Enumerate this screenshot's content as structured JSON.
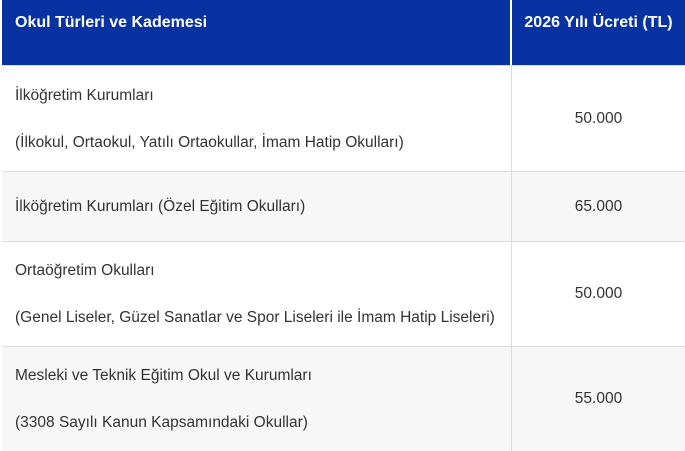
{
  "table": {
    "header": {
      "col1": "Okul Türleri ve Kademesi",
      "col2": "2026 Yılı Ücreti (TL)"
    },
    "rows": [
      {
        "title": "İlköğretim Kurumları",
        "subtitle": "(İlkokul, Ortaokul, Yatılı Ortaokullar, İmam Hatip Okulları)",
        "price": "50.000"
      },
      {
        "title": "İlköğretim Kurumları (Özel Eğitim Okulları)",
        "subtitle": "",
        "price": "65.000"
      },
      {
        "title": "Ortaöğretim Okulları",
        "subtitle": "(Genel Liseler, Güzel Sanatlar ve Spor Liseleri ile İmam Hatip Liseleri)",
        "price": "50.000"
      },
      {
        "title": "Mesleki ve Teknik Eğitim Okul ve Kurumları",
        "subtitle": "(3308 Sayılı Kanun Kapsamındaki Okullar)",
        "price": "55.000"
      }
    ],
    "colors": {
      "header_bg": "#0831a2",
      "header_text": "#ffffff",
      "row_alt_bg": "#f7f7f7",
      "body_text": "#333333",
      "border": "#dcdcdc"
    }
  },
  "chart_data": {
    "type": "table",
    "title": "Okul Türleri ve Kademesi / 2026 Yılı Ücreti (TL)",
    "columns": [
      "Okul Türleri ve Kademesi",
      "2026 Yılı Ücreti (TL)"
    ],
    "rows": [
      [
        "İlköğretim Kurumları (İlkokul, Ortaokul, Yatılı Ortaokullar, İmam Hatip Okulları)",
        "50.000"
      ],
      [
        "İlköğretim Kurumları (Özel Eğitim Okulları)",
        "65.000"
      ],
      [
        "Ortaöğretim Okulları (Genel Liseler, Güzel Sanatlar ve Spor Liseleri ile İmam Hatip Liseleri)",
        "50.000"
      ],
      [
        "Mesleki ve Teknik Eğitim Okul ve Kurumları (3308 Sayılı Kanun Kapsamındaki Okullar)",
        "55.000"
      ]
    ],
    "values_numeric": [
      50000,
      65000,
      50000,
      55000
    ],
    "layout": {
      "header_position": "top",
      "grid": true,
      "zebra_striping": true
    }
  }
}
